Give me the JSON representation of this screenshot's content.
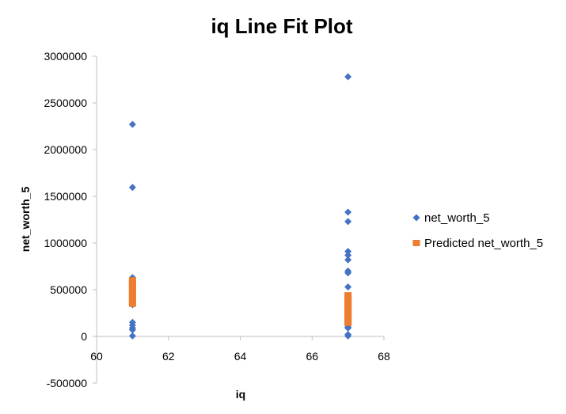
{
  "chart_data": {
    "type": "scatter",
    "title": "iq Line Fit  Plot",
    "xlabel": "iq",
    "ylabel": "net_worth_5",
    "xlim": [
      60,
      68
    ],
    "ylim": [
      -500000,
      3000000
    ],
    "x_ticks": [
      "60",
      "62",
      "64",
      "66",
      "68"
    ],
    "y_ticks": [
      "-500000",
      "0",
      "500000",
      "1000000",
      "1500000",
      "2000000",
      "2500000",
      "3000000"
    ],
    "grid": false,
    "legend_position": "right",
    "series": [
      {
        "name": "net_worth_5",
        "marker": "diamond",
        "color": "#4472C4",
        "points": [
          {
            "x": 61,
            "y": 2270000
          },
          {
            "x": 61,
            "y": 1595000
          },
          {
            "x": 61,
            "y": 630000
          },
          {
            "x": 61,
            "y": 500000
          },
          {
            "x": 61,
            "y": 470000
          },
          {
            "x": 61,
            "y": 430000
          },
          {
            "x": 61,
            "y": 400000
          },
          {
            "x": 61,
            "y": 340000
          },
          {
            "x": 61,
            "y": 150000
          },
          {
            "x": 61,
            "y": 120000
          },
          {
            "x": 61,
            "y": 90000
          },
          {
            "x": 61,
            "y": 70000
          },
          {
            "x": 61,
            "y": 5000
          },
          {
            "x": 67,
            "y": 2780000
          },
          {
            "x": 67,
            "y": 1330000
          },
          {
            "x": 67,
            "y": 1230000
          },
          {
            "x": 67,
            "y": 910000
          },
          {
            "x": 67,
            "y": 870000
          },
          {
            "x": 67,
            "y": 820000
          },
          {
            "x": 67,
            "y": 700000
          },
          {
            "x": 67,
            "y": 680000
          },
          {
            "x": 67,
            "y": 530000
          },
          {
            "x": 67,
            "y": 420000
          },
          {
            "x": 67,
            "y": 380000
          },
          {
            "x": 67,
            "y": 330000
          },
          {
            "x": 67,
            "y": 230000
          },
          {
            "x": 67,
            "y": 200000
          },
          {
            "x": 67,
            "y": 170000
          },
          {
            "x": 67,
            "y": 120000
          },
          {
            "x": 67,
            "y": 100000
          },
          {
            "x": 67,
            "y": 90000
          },
          {
            "x": 67,
            "y": 20000
          },
          {
            "x": 67,
            "y": 5000
          }
        ]
      },
      {
        "name": "Predicted net_worth_5",
        "marker": "square",
        "color": "#ED7D31",
        "points": [
          {
            "x": 61,
            "y": 600000
          },
          {
            "x": 61,
            "y": 575000
          },
          {
            "x": 61,
            "y": 550000
          },
          {
            "x": 61,
            "y": 525000
          },
          {
            "x": 61,
            "y": 500000
          },
          {
            "x": 61,
            "y": 475000
          },
          {
            "x": 61,
            "y": 450000
          },
          {
            "x": 61,
            "y": 425000
          },
          {
            "x": 61,
            "y": 400000
          },
          {
            "x": 61,
            "y": 375000
          },
          {
            "x": 61,
            "y": 350000
          },
          {
            "x": 67,
            "y": 440000
          },
          {
            "x": 67,
            "y": 415000
          },
          {
            "x": 67,
            "y": 390000
          },
          {
            "x": 67,
            "y": 365000
          },
          {
            "x": 67,
            "y": 340000
          },
          {
            "x": 67,
            "y": 315000
          },
          {
            "x": 67,
            "y": 290000
          },
          {
            "x": 67,
            "y": 265000
          },
          {
            "x": 67,
            "y": 240000
          },
          {
            "x": 67,
            "y": 215000
          },
          {
            "x": 67,
            "y": 190000
          },
          {
            "x": 67,
            "y": 165000
          },
          {
            "x": 67,
            "y": 145000
          }
        ]
      }
    ]
  }
}
